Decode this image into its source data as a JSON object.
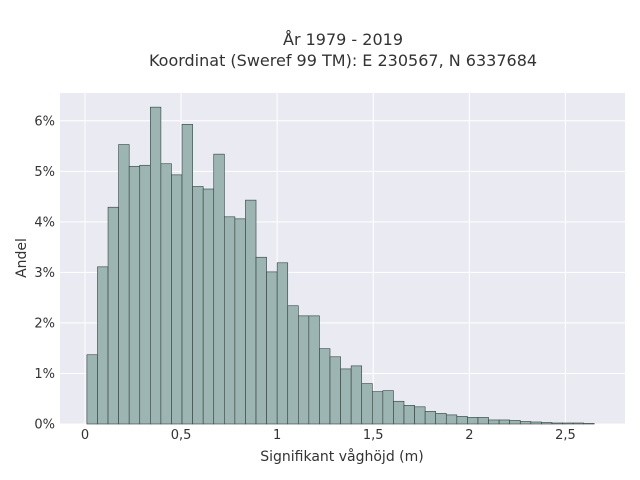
{
  "chart_data": {
    "type": "bar",
    "title_lines": [
      "År 1979 - 2019",
      "Koordinat (Sweref 99 TM): E 230567, N 6337684"
    ],
    "xlabel": "Signifikant våghöjd (m)",
    "ylabel": "Andel",
    "x_ticks": [
      {
        "value": 0,
        "label": "0"
      },
      {
        "value": 0.5,
        "label": "0,5"
      },
      {
        "value": 1,
        "label": "1"
      },
      {
        "value": 1.5,
        "label": "1,5"
      },
      {
        "value": 2,
        "label": "2"
      },
      {
        "value": 2.5,
        "label": "2,5"
      }
    ],
    "y_ticks": [
      {
        "value": 0,
        "label": "0%"
      },
      {
        "value": 1,
        "label": "1%"
      },
      {
        "value": 2,
        "label": "2%"
      },
      {
        "value": 3,
        "label": "3%"
      },
      {
        "value": 4,
        "label": "4%"
      },
      {
        "value": 5,
        "label": "5%"
      },
      {
        "value": 6,
        "label": "6%"
      }
    ],
    "xlim": [
      -0.13,
      2.81
    ],
    "ylim": [
      0,
      6.55
    ],
    "bin_start": 0.01,
    "bin_width": 0.055,
    "values": [
      1.37,
      3.11,
      4.29,
      5.53,
      5.1,
      5.12,
      6.27,
      5.15,
      4.93,
      5.93,
      4.7,
      4.65,
      5.34,
      4.1,
      4.06,
      4.43,
      3.3,
      3.01,
      3.19,
      2.34,
      2.14,
      2.14,
      1.49,
      1.33,
      1.09,
      1.15,
      0.8,
      0.64,
      0.66,
      0.45,
      0.37,
      0.34,
      0.25,
      0.21,
      0.18,
      0.15,
      0.13,
      0.13,
      0.08,
      0.08,
      0.07,
      0.05,
      0.04,
      0.03,
      0.02,
      0.02,
      0.02,
      0.01
    ],
    "grid": true,
    "colors": {
      "bar_fill": "#9DB5B2",
      "bar_edge": "#2f3f3d",
      "plot_bg": "#EAEAF2",
      "grid": "#ffffff",
      "text": "#333333"
    }
  }
}
